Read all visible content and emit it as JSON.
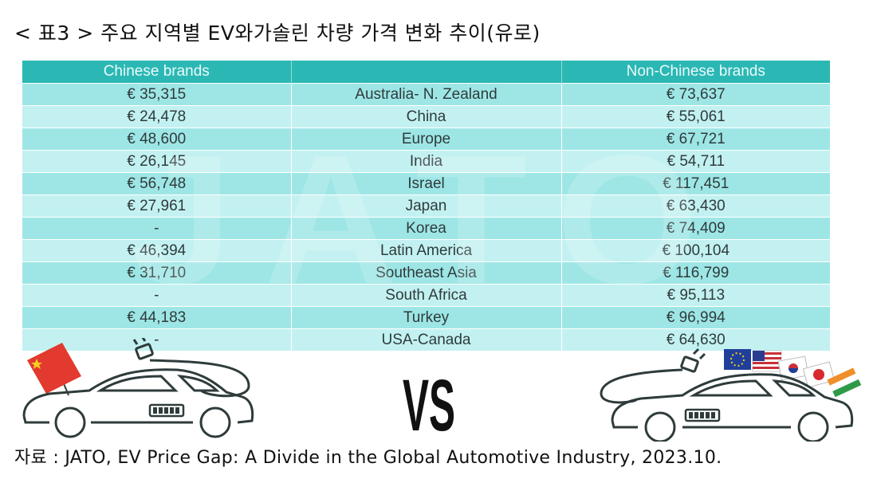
{
  "title": "< 표3 > 주요 지역별 EV와가솔린 차량 가격 변화 추이(유로)",
  "table": {
    "headers": [
      "Chinese brands",
      "",
      "Non-Chinese brands"
    ],
    "rows": [
      [
        "€ 35,315",
        "Australia- N. Zealand",
        "€ 73,637"
      ],
      [
        "€ 24,478",
        "China",
        "€ 55,061"
      ],
      [
        "€ 48,600",
        "Europe",
        "€ 67,721"
      ],
      [
        "€ 26,145",
        "India",
        "€ 54,711"
      ],
      [
        "€ 56,748",
        "Israel",
        "€ 117,451"
      ],
      [
        "€ 27,961",
        "Japan",
        "€ 63,430"
      ],
      [
        "-",
        "Korea",
        "€ 74,409"
      ],
      [
        "€ 46,394",
        "Latin America",
        "€ 100,104"
      ],
      [
        "€ 31,710",
        "Southeast Asia",
        "€ 116,799"
      ],
      [
        "-",
        "South Africa",
        "€ 95,113"
      ],
      [
        "€ 44,183",
        "Turkey",
        "€ 96,994"
      ],
      [
        "-",
        "USA-Canada",
        "€ 64,630"
      ]
    ]
  },
  "watermark": "JATO",
  "vs_label": "VS",
  "source": "자료 : JATO, EV Price Gap: A Divide in the Global Automotive Industry, 2023.10.",
  "colors": {
    "header_bg": "#2bb8b4",
    "row_dark": "#9ee6e6",
    "row_light": "#c3f1f1",
    "car_outline": "#2f3b3b"
  }
}
